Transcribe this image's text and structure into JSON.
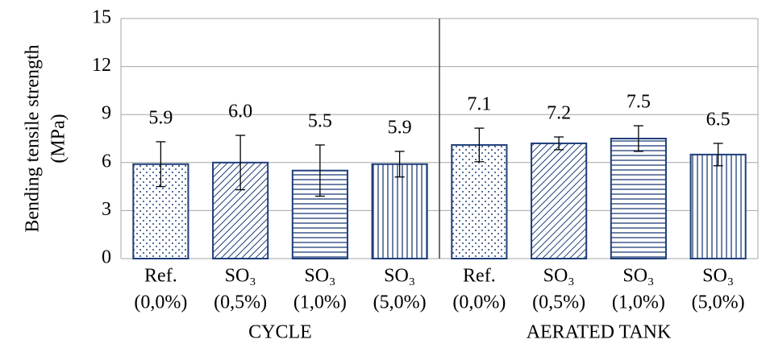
{
  "chart_data": {
    "type": "bar",
    "y_label": [
      "Bending tensile strength",
      "(MPa)"
    ],
    "categories": [
      [
        "Ref.",
        "(0,0%)"
      ],
      [
        "SO₃",
        "(0,5%)"
      ],
      [
        "SO₃",
        "(1,0%)"
      ],
      [
        "SO₃",
        "(5,0%)"
      ],
      [
        "Ref.",
        "(0,0%)"
      ],
      [
        "SO₃",
        "(0,5%)"
      ],
      [
        "SO₃",
        "(1,0%)"
      ],
      [
        "SO₃",
        "(5,0%)"
      ]
    ],
    "groups": [
      "CYCLE",
      "AERATED TANK"
    ],
    "values": [
      5.9,
      6.0,
      5.5,
      5.9,
      7.1,
      7.2,
      7.5,
      6.5
    ],
    "value_labels": [
      "5.9",
      "6.0",
      "5.5",
      "5.9",
      "7.1",
      "7.2",
      "7.5",
      "6.5"
    ],
    "errors": [
      1.4,
      1.7,
      1.6,
      0.8,
      1.05,
      0.4,
      0.8,
      0.7
    ],
    "patterns": [
      "dots",
      "diagonal",
      "horizontal",
      "vertical",
      "dots",
      "diagonal",
      "horizontal",
      "vertical"
    ],
    "color": "#1f3e7a",
    "ylim": [
      0,
      15
    ],
    "yticks": [
      0,
      3,
      6,
      9,
      12,
      15
    ],
    "grid": true
  }
}
